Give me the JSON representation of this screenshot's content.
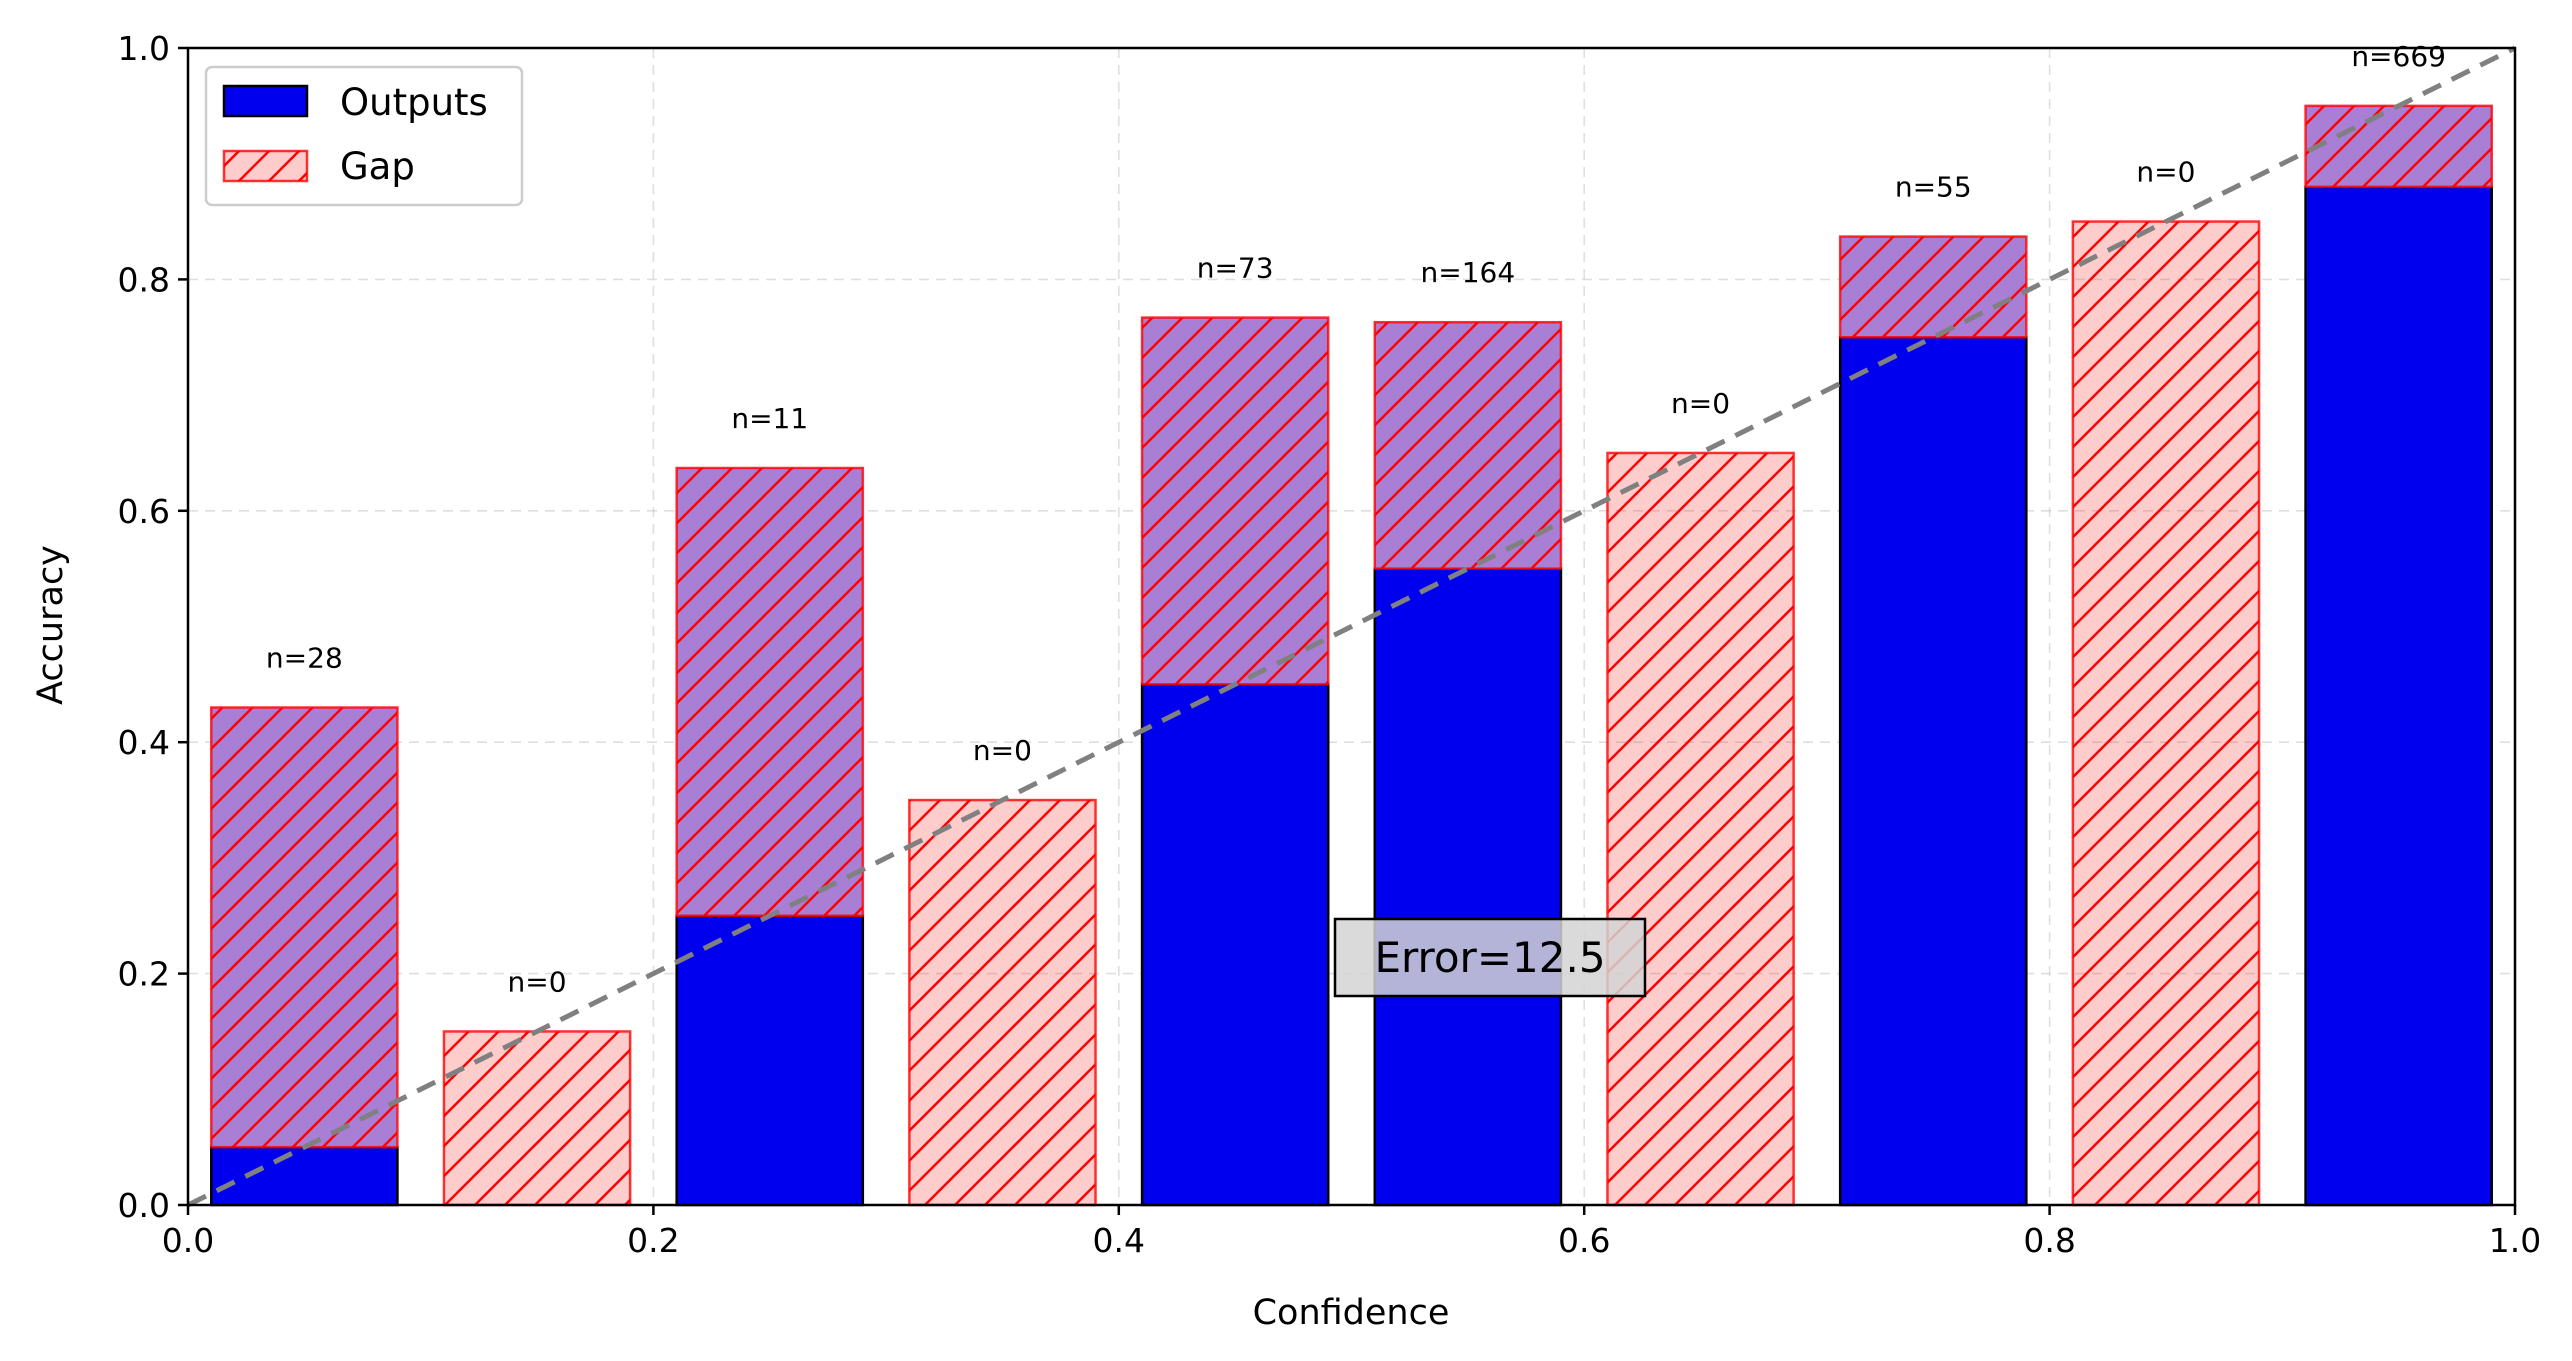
{
  "chart_data": {
    "type": "bar",
    "title": "",
    "xlabel": "Confidence",
    "ylabel": "Accuracy",
    "xlim": [
      0.0,
      1.0
    ],
    "ylim": [
      0.0,
      1.0
    ],
    "x_ticks": [
      "0.0",
      "0.2",
      "0.4",
      "0.6",
      "0.8",
      "1.0"
    ],
    "y_ticks": [
      "0.0",
      "0.2",
      "0.4",
      "0.6",
      "0.8",
      "1.0"
    ],
    "grid": true,
    "bin_width": 0.1,
    "bar_width": 0.08,
    "bin_centers": [
      0.05,
      0.15,
      0.25,
      0.35,
      0.45,
      0.55,
      0.65,
      0.75,
      0.85,
      0.95
    ],
    "series": [
      {
        "name": "Outputs",
        "values": [
          0.05,
          0.0,
          0.25,
          0.0,
          0.45,
          0.55,
          0.0,
          0.75,
          0.0,
          0.88
        ]
      },
      {
        "name": "Gap",
        "values": [
          0.43,
          0.15,
          0.637,
          0.35,
          0.767,
          0.763,
          0.65,
          0.837,
          0.85,
          0.95
        ]
      }
    ],
    "counts": [
      "n=28",
      "n=0",
      "n=11",
      "n=0",
      "n=73",
      "n=164",
      "n=0",
      "n=55",
      "n=0",
      "n=669"
    ],
    "annotation": "Error=12.5",
    "diagonal": {
      "x": [
        0,
        1
      ],
      "y": [
        0,
        1
      ],
      "style": "dashed",
      "color": "#808080"
    },
    "legend_position": "top-left",
    "colors": {
      "outputs_fill": "#0000ee",
      "outputs_edge": "#000000",
      "gap_fill": "#ff0000",
      "gap_fill_alpha": 0.2,
      "gap_edge": "#ff0000",
      "overlap_fill": "#a97fd6"
    }
  }
}
